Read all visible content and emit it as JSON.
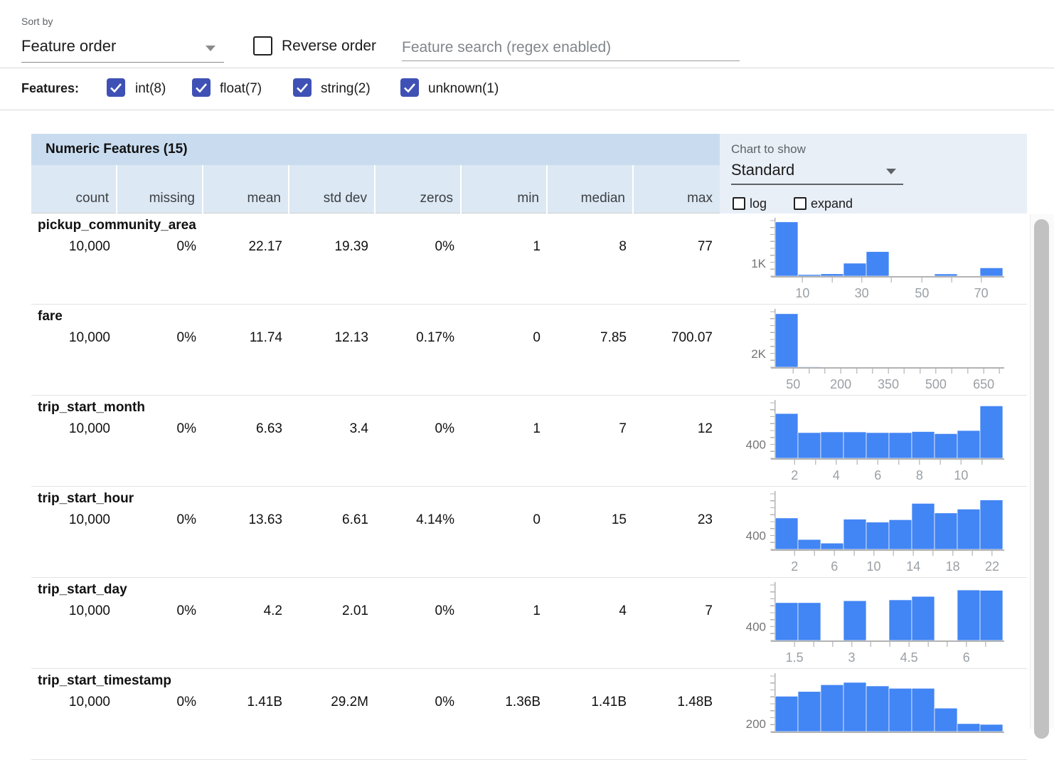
{
  "toolbar": {
    "sort_by_label": "Sort by",
    "sort_value": "Feature order",
    "reverse_label": "Reverse order",
    "search_placeholder": "Feature search (regex enabled)"
  },
  "filters": {
    "label": "Features:",
    "items": [
      {
        "label": "int(8)",
        "checked": true
      },
      {
        "label": "float(7)",
        "checked": true
      },
      {
        "label": "string(2)",
        "checked": true
      },
      {
        "label": "unknown(1)",
        "checked": true
      }
    ]
  },
  "table": {
    "title": "Numeric Features (15)",
    "columns": [
      "count",
      "missing",
      "mean",
      "std dev",
      "zeros",
      "min",
      "median",
      "max"
    ]
  },
  "chart_controls": {
    "label": "Chart to show",
    "value": "Standard",
    "log_label": "log",
    "expand_label": "expand"
  },
  "colors": {
    "bar": "#4285f4",
    "bar_stroke": "#ffffff",
    "axis": "#b3b3b3",
    "tick": "#c2c2c2",
    "tick_label": "#9aa0a6",
    "y_label": "#757575",
    "checkbox_accent": "#3f51b5",
    "header_bg": "#c9dcef",
    "subheader_bg": "#dce8f4",
    "panel_bg": "#e9eff7"
  },
  "features": [
    {
      "name": "pickup_community_area",
      "stats": [
        "10,000",
        "0%",
        "22.17",
        "19.39",
        "0%",
        "1",
        "8",
        "77"
      ],
      "chart": {
        "type": "bar",
        "y_label": "1K",
        "y_label_value": 1000,
        "ymax": 4300,
        "values": [
          4200,
          120,
          180,
          1000,
          1900,
          40,
          40,
          170,
          40,
          640
        ],
        "ticks": [
          0.12,
          0.25,
          0.38,
          0.51,
          0.645,
          0.775,
          0.905
        ],
        "tick_labels": [
          {
            "text": "10",
            "f": 0.12
          },
          {
            "text": "30",
            "f": 0.38
          },
          {
            "text": "50",
            "f": 0.645
          },
          {
            "text": "70",
            "f": 0.905
          }
        ]
      }
    },
    {
      "name": "fare",
      "stats": [
        "10,000",
        "0%",
        "11.74",
        "12.13",
        "0.17%",
        "0",
        "7.85",
        "700.07"
      ],
      "chart": {
        "type": "bar",
        "y_label": "2K",
        "y_label_value": 2000,
        "ymax": 8300,
        "values": [
          8000,
          90,
          35,
          20,
          12,
          8,
          6,
          5,
          4,
          10
        ],
        "ticks": [
          0.079,
          0.149,
          0.218,
          0.288,
          0.358,
          0.428,
          0.497,
          0.567,
          0.637,
          0.706,
          0.776,
          0.846,
          0.916,
          0.985
        ],
        "tick_labels": [
          {
            "text": "50",
            "f": 0.079
          },
          {
            "text": "200",
            "f": 0.288
          },
          {
            "text": "350",
            "f": 0.497
          },
          {
            "text": "500",
            "f": 0.706
          },
          {
            "text": "650",
            "f": 0.916
          }
        ]
      }
    },
    {
      "name": "trip_start_month",
      "stats": [
        "10,000",
        "0%",
        "6.63",
        "3.4",
        "0%",
        "1",
        "7",
        "12"
      ],
      "chart": {
        "type": "bar",
        "y_label": "400",
        "y_label_value": 400,
        "ymax": 1600,
        "values": [
          1290,
          740,
          760,
          760,
          740,
          740,
          770,
          710,
          800,
          1510
        ],
        "ticks": [
          0.085,
          0.177,
          0.268,
          0.36,
          0.451,
          0.543,
          0.634,
          0.726,
          0.817,
          0.909
        ],
        "tick_labels": [
          {
            "text": "2",
            "f": 0.085
          },
          {
            "text": "4",
            "f": 0.268
          },
          {
            "text": "6",
            "f": 0.451
          },
          {
            "text": "8",
            "f": 0.634
          },
          {
            "text": "10",
            "f": 0.817
          }
        ]
      }
    },
    {
      "name": "trip_start_hour",
      "stats": [
        "10,000",
        "0%",
        "13.63",
        "6.61",
        "4.14%",
        "0",
        "15",
        "23"
      ],
      "chart": {
        "type": "bar",
        "y_label": "400",
        "y_label_value": 400,
        "ymax": 1600,
        "values": [
          905,
          285,
          180,
          870,
          785,
          855,
          1325,
          1050,
          1160,
          1425
        ],
        "ticks": [
          0.085,
          0.172,
          0.26,
          0.347,
          0.433,
          0.52,
          0.607,
          0.693,
          0.78,
          0.866,
          0.953
        ],
        "tick_labels": [
          {
            "text": "2",
            "f": 0.085
          },
          {
            "text": "6",
            "f": 0.26
          },
          {
            "text": "10",
            "f": 0.433
          },
          {
            "text": "14",
            "f": 0.607
          },
          {
            "text": "18",
            "f": 0.78
          },
          {
            "text": "22",
            "f": 0.953
          }
        ]
      }
    },
    {
      "name": "trip_start_day",
      "stats": [
        "10,000",
        "0%",
        "4.2",
        "2.01",
        "0%",
        "1",
        "4",
        "7"
      ],
      "chart": {
        "type": "bar",
        "y_label": "400",
        "y_label_value": 400,
        "ymax": 1600,
        "values": [
          1090,
          1090,
          0,
          1145,
          0,
          1170,
          1270,
          0,
          1455,
          1445
        ],
        "ticks": [
          0.085,
          0.169,
          0.253,
          0.336,
          0.42,
          0.504,
          0.588,
          0.672,
          0.756,
          0.84,
          0.924
        ],
        "tick_labels": [
          {
            "text": "1.5",
            "f": 0.085
          },
          {
            "text": "3",
            "f": 0.336
          },
          {
            "text": "4.5",
            "f": 0.588
          },
          {
            "text": "6",
            "f": 0.84
          }
        ]
      }
    },
    {
      "name": "trip_start_timestamp",
      "stats": [
        "10,000",
        "0%",
        "1.41B",
        "29.2M",
        "0%",
        "1.36B",
        "1.41B",
        "1.48B"
      ],
      "chart": {
        "type": "bar",
        "y_label": "200",
        "y_label_value": 200,
        "ymax": 1400,
        "values": [
          890,
          1010,
          1180,
          1240,
          1150,
          1090,
          1090,
          590,
          200,
          180
        ],
        "ticks": [],
        "tick_labels": []
      }
    }
  ]
}
